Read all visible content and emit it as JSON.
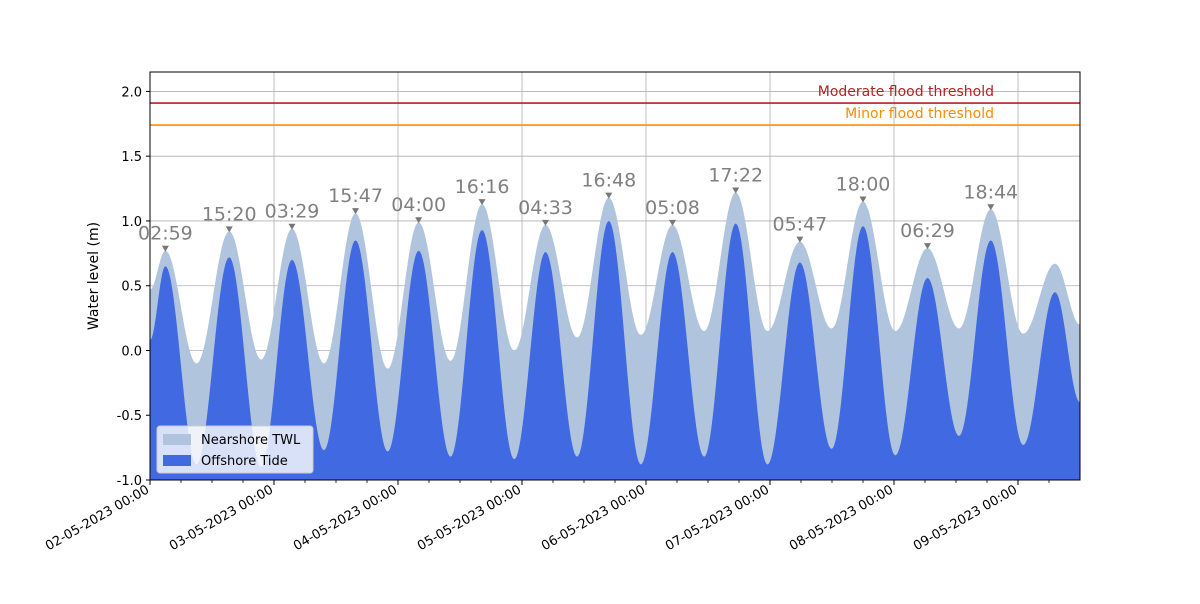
{
  "chart_data": {
    "type": "area",
    "title": "",
    "xlabel": "",
    "ylabel": "Water level (m)",
    "ylim": [
      -1.0,
      2.15
    ],
    "xlim": [
      "2023-05-02T00:00",
      "2023-05-09T12:00"
    ],
    "yticks": [
      "-1.0",
      "-0.5",
      "0.0",
      "0.5",
      "1.0",
      "1.5",
      "2.0"
    ],
    "xticks": [
      "02-05-2023 00:00",
      "03-05-2023 00:00",
      "04-05-2023 00:00",
      "05-05-2023 00:00",
      "06-05-2023 00:00",
      "07-05-2023 00:00",
      "08-05-2023 00:00",
      "09-05-2023 00:00"
    ],
    "grid": true,
    "legend": {
      "placement": "lower-left",
      "entries": [
        {
          "label": "Nearshore TWL",
          "color": "#b0c4de"
        },
        {
          "label": "Offshore Tide",
          "color": "#4169e1"
        }
      ]
    },
    "thresholds": [
      {
        "label": "Moderate flood threshold",
        "value": 1.91,
        "color": "#b22222"
      },
      {
        "label": "Minor flood threshold",
        "value": 1.74,
        "color": "#ff8c00"
      }
    ],
    "peak_annotations": [
      {
        "label": "02:59",
        "time": "2023-05-02T02:59",
        "value": 0.77
      },
      {
        "label": "15:20",
        "time": "2023-05-02T15:20",
        "value": 0.92
      },
      {
        "label": "03:29",
        "time": "2023-05-03T03:29",
        "value": 0.94
      },
      {
        "label": "15:47",
        "time": "2023-05-03T15:47",
        "value": 1.06
      },
      {
        "label": "04:00",
        "time": "2023-05-04T04:00",
        "value": 0.99
      },
      {
        "label": "16:16",
        "time": "2023-05-04T16:16",
        "value": 1.13
      },
      {
        "label": "04:33",
        "time": "2023-05-05T04:33",
        "value": 0.97
      },
      {
        "label": "16:48",
        "time": "2023-05-05T16:48",
        "value": 1.18
      },
      {
        "label": "05:08",
        "time": "2023-05-06T05:08",
        "value": 0.97
      },
      {
        "label": "17:22",
        "time": "2023-05-06T17:22",
        "value": 1.22
      },
      {
        "label": "05:47",
        "time": "2023-05-07T05:47",
        "value": 0.84
      },
      {
        "label": "18:00",
        "time": "2023-05-07T18:00",
        "value": 1.15
      },
      {
        "label": "06:29",
        "time": "2023-05-08T06:29",
        "value": 0.79
      },
      {
        "label": "18:44",
        "time": "2023-05-08T18:44",
        "value": 1.09
      }
    ],
    "series": [
      {
        "name": "Nearshore TWL",
        "color": "#b0c4de",
        "points": [
          [
            "2023-05-02T00:00",
            0.47
          ],
          [
            "2023-05-02T02:59",
            0.77
          ],
          [
            "2023-05-02T09:00",
            -0.1
          ],
          [
            "2023-05-02T15:20",
            0.92
          ],
          [
            "2023-05-02T21:30",
            -0.07
          ],
          [
            "2023-05-03T03:29",
            0.94
          ],
          [
            "2023-05-03T09:40",
            -0.1
          ],
          [
            "2023-05-03T15:47",
            1.06
          ],
          [
            "2023-05-03T22:00",
            -0.14
          ],
          [
            "2023-05-04T04:00",
            0.99
          ],
          [
            "2023-05-04T10:10",
            -0.08
          ],
          [
            "2023-05-04T16:16",
            1.13
          ],
          [
            "2023-05-04T22:30",
            0.0
          ],
          [
            "2023-05-05T04:33",
            0.97
          ],
          [
            "2023-05-05T10:40",
            0.1
          ],
          [
            "2023-05-05T16:48",
            1.18
          ],
          [
            "2023-05-05T23:00",
            0.12
          ],
          [
            "2023-05-06T05:08",
            0.97
          ],
          [
            "2023-05-06T11:15",
            0.15
          ],
          [
            "2023-05-06T17:22",
            1.22
          ],
          [
            "2023-05-06T23:30",
            0.15
          ],
          [
            "2023-05-07T05:47",
            0.84
          ],
          [
            "2023-05-07T11:55",
            0.17
          ],
          [
            "2023-05-07T18:00",
            1.15
          ],
          [
            "2023-05-08T00:15",
            0.15
          ],
          [
            "2023-05-08T06:29",
            0.79
          ],
          [
            "2023-05-08T12:35",
            0.17
          ],
          [
            "2023-05-08T18:44",
            1.09
          ],
          [
            "2023-05-09T01:00",
            0.13
          ],
          [
            "2023-05-09T07:10",
            0.67
          ],
          [
            "2023-05-09T12:00",
            0.2
          ]
        ]
      },
      {
        "name": "Offshore Tide",
        "color": "#4169e1",
        "points": [
          [
            "2023-05-02T00:00",
            0.08
          ],
          [
            "2023-05-02T02:59",
            0.65
          ],
          [
            "2023-05-02T09:00",
            -0.88
          ],
          [
            "2023-05-02T15:20",
            0.72
          ],
          [
            "2023-05-02T21:30",
            -0.9
          ],
          [
            "2023-05-03T03:29",
            0.7
          ],
          [
            "2023-05-03T09:40",
            -0.77
          ],
          [
            "2023-05-03T15:47",
            0.85
          ],
          [
            "2023-05-03T22:00",
            -0.78
          ],
          [
            "2023-05-04T04:00",
            0.77
          ],
          [
            "2023-05-04T10:10",
            -0.82
          ],
          [
            "2023-05-04T16:16",
            0.93
          ],
          [
            "2023-05-04T22:30",
            -0.84
          ],
          [
            "2023-05-05T04:33",
            0.76
          ],
          [
            "2023-05-05T10:40",
            -0.82
          ],
          [
            "2023-05-05T16:48",
            1.0
          ],
          [
            "2023-05-05T23:00",
            -0.88
          ],
          [
            "2023-05-06T05:08",
            0.76
          ],
          [
            "2023-05-06T11:15",
            -0.82
          ],
          [
            "2023-05-06T17:22",
            0.98
          ],
          [
            "2023-05-06T23:30",
            -0.88
          ],
          [
            "2023-05-07T05:47",
            0.68
          ],
          [
            "2023-05-07T11:55",
            -0.76
          ],
          [
            "2023-05-07T18:00",
            0.96
          ],
          [
            "2023-05-08T00:15",
            -0.81
          ],
          [
            "2023-05-08T06:29",
            0.56
          ],
          [
            "2023-05-08T12:35",
            -0.66
          ],
          [
            "2023-05-08T18:44",
            0.85
          ],
          [
            "2023-05-09T01:00",
            -0.73
          ],
          [
            "2023-05-09T07:10",
            0.45
          ],
          [
            "2023-05-09T12:00",
            -0.4
          ]
        ]
      }
    ]
  }
}
